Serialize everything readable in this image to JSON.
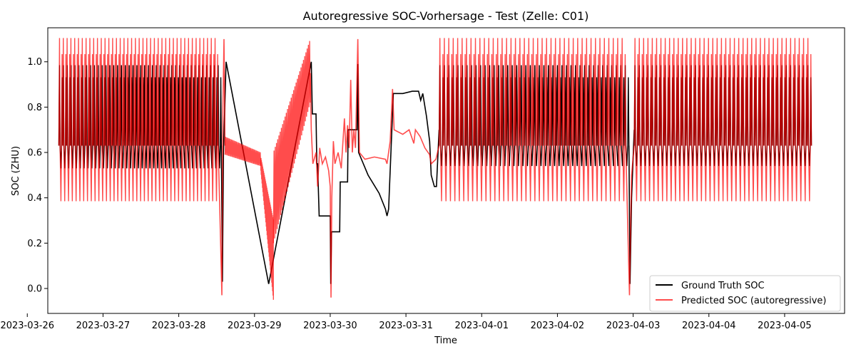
{
  "chart_data": {
    "type": "line",
    "title": "Autoregressive SOC-Vorhersage - Test (Zelle: C01)",
    "xlabel": "Time",
    "ylabel": "SOC (ZHU)",
    "xlim": [
      "2023-03-26 06:30",
      "2023-04-05 19:00"
    ],
    "ylim": [
      -0.11,
      1.15
    ],
    "x_ticks": [
      "2023-03-26",
      "2023-03-27",
      "2023-03-28",
      "2023-03-29",
      "2023-03-30",
      "2023-03-31",
      "2023-04-01",
      "2023-04-02",
      "2023-04-03",
      "2023-04-04",
      "2023-04-05"
    ],
    "y_ticks": [
      0.0,
      0.2,
      0.4,
      0.6,
      0.8,
      1.0
    ],
    "grid": false,
    "legend_position": "lower-right",
    "series": [
      {
        "name": "Ground Truth SOC",
        "color": "#000000",
        "segments": [
          {
            "kind": "cycling",
            "start": "2023-03-26 10:00",
            "end": "2023-03-28 13:30",
            "cycles": 42,
            "min": 0.53,
            "max": 0.985,
            "mid": 0.63
          },
          {
            "kind": "path",
            "points": [
              [
                "2023-03-28 13:30",
                0.63
              ],
              [
                "2023-03-28 13:50",
                0.03
              ],
              [
                "2023-03-28 14:10",
                0.6
              ],
              [
                "2023-03-28 15:00",
                1.0
              ],
              [
                "2023-03-29 04:30",
                0.02
              ],
              [
                "2023-03-29 18:00",
                1.0
              ],
              [
                "2023-03-29 18:20",
                0.77
              ],
              [
                "2023-03-29 19:30",
                0.77
              ],
              [
                "2023-03-29 19:45",
                0.55
              ],
              [
                "2023-03-29 20:00",
                0.55
              ],
              [
                "2023-03-29 20:30",
                0.32
              ],
              [
                "2023-03-30 00:00",
                0.32
              ],
              [
                "2023-03-30 00:10",
                0.02
              ],
              [
                "2023-03-30 00:25",
                0.25
              ],
              [
                "2023-03-30 03:00",
                0.25
              ],
              [
                "2023-03-30 03:10",
                0.47
              ],
              [
                "2023-03-30 05:30",
                0.47
              ],
              [
                "2023-03-30 05:40",
                0.7
              ],
              [
                "2023-03-30 08:30",
                0.7
              ],
              [
                "2023-03-30 08:45",
                0.99
              ],
              [
                "2023-03-30 09:00",
                0.6
              ],
              [
                "2023-03-30 12:00",
                0.5
              ],
              [
                "2023-03-30 15:30",
                0.42
              ],
              [
                "2023-03-30 17:30",
                0.35
              ],
              [
                "2023-03-30 18:00",
                0.32
              ],
              [
                "2023-03-30 18:30",
                0.35
              ],
              [
                "2023-03-30 20:00",
                0.86
              ],
              [
                "2023-03-30 23:00",
                0.86
              ],
              [
                "2023-03-31 02:00",
                0.87
              ],
              [
                "2023-03-31 04:00",
                0.87
              ],
              [
                "2023-03-31 04:40",
                0.83
              ],
              [
                "2023-03-31 05:20",
                0.86
              ],
              [
                "2023-03-31 06:30",
                0.76
              ],
              [
                "2023-03-31 07:30",
                0.65
              ],
              [
                "2023-03-31 08:00",
                0.5
              ],
              [
                "2023-03-31 09:00",
                0.45
              ],
              [
                "2023-03-31 09:40",
                0.45
              ],
              [
                "2023-03-31 10:30",
                0.7
              ]
            ]
          },
          {
            "kind": "cycling",
            "start": "2023-03-31 10:30",
            "end": "2023-04-02 22:40",
            "cycles": 42,
            "min": 0.54,
            "max": 0.985,
            "mid": 0.63
          },
          {
            "kind": "path",
            "points": [
              [
                "2023-04-02 22:40",
                0.63
              ],
              [
                "2023-04-02 23:00",
                0.02
              ],
              [
                "2023-04-02 23:30",
                0.4
              ],
              [
                "2023-04-03 00:20",
                0.7
              ]
            ]
          },
          {
            "kind": "cycling",
            "start": "2023-04-03 00:20",
            "end": "2023-04-05 08:30",
            "cycles": 41,
            "min": 0.54,
            "max": 0.985,
            "mid": 0.63
          }
        ]
      },
      {
        "name": "Predicted SOC (autoregressive)",
        "color": "#ff0000",
        "opacity": 0.7,
        "segments": [
          {
            "kind": "cycling",
            "start": "2023-03-26 10:00",
            "end": "2023-03-28 12:30",
            "cycles": 42,
            "min": 0.385,
            "max": 1.105,
            "mid": 0.63
          },
          {
            "kind": "path",
            "points": [
              [
                "2023-03-28 12:30",
                0.63
              ],
              [
                "2023-03-28 13:00",
                0.35
              ],
              [
                "2023-03-28 13:40",
                -0.03
              ],
              [
                "2023-03-28 14:00",
                0.8
              ],
              [
                "2023-03-28 14:20",
                1.1
              ],
              [
                "2023-03-28 14:40",
                0.63
              ]
            ]
          },
          {
            "kind": "band",
            "start": "2023-03-28 14:40",
            "end": "2023-03-29 02:00",
            "lower_start": 0.59,
            "lower_end": 0.54,
            "upper_start": 0.67,
            "upper_end": 0.6
          },
          {
            "kind": "band",
            "start": "2023-03-29 02:00",
            "end": "2023-03-29 06:00",
            "lower_start": 0.52,
            "lower_end": -0.05,
            "upper_start": 0.58,
            "upper_end": 0.3
          },
          {
            "kind": "band",
            "start": "2023-03-29 06:00",
            "end": "2023-03-29 17:40",
            "lower_start": 0.2,
            "lower_end": 0.82,
            "upper_start": 0.6,
            "upper_end": 1.1
          },
          {
            "kind": "path",
            "points": [
              [
                "2023-03-29 17:40",
                0.95
              ],
              [
                "2023-03-29 18:00",
                0.7
              ],
              [
                "2023-03-29 18:30",
                0.55
              ],
              [
                "2023-03-29 19:30",
                0.6
              ],
              [
                "2023-03-29 20:00",
                0.45
              ],
              [
                "2023-03-29 20:40",
                0.62
              ],
              [
                "2023-03-29 21:30",
                0.55
              ],
              [
                "2023-03-29 22:30",
                0.58
              ],
              [
                "2023-03-29 23:30",
                0.52
              ],
              [
                "2023-03-30 00:00",
                0.45
              ],
              [
                "2023-03-30 00:15",
                -0.04
              ],
              [
                "2023-03-30 00:30",
                0.4
              ],
              [
                "2023-03-30 01:00",
                0.65
              ],
              [
                "2023-03-30 01:30",
                0.55
              ],
              [
                "2023-03-30 02:30",
                0.6
              ],
              [
                "2023-03-30 03:30",
                0.53
              ],
              [
                "2023-03-30 04:30",
                0.75
              ],
              [
                "2023-03-30 05:00",
                0.6
              ],
              [
                "2023-03-30 05:30",
                0.72
              ],
              [
                "2023-03-30 06:00",
                0.62
              ],
              [
                "2023-03-30 06:30",
                0.92
              ],
              [
                "2023-03-30 07:00",
                0.6
              ],
              [
                "2023-03-30 07:30",
                0.7
              ],
              [
                "2023-03-30 08:00",
                0.62
              ],
              [
                "2023-03-30 08:45",
                1.1
              ],
              [
                "2023-03-30 09:15",
                0.6
              ],
              [
                "2023-03-30 11:00",
                0.57
              ],
              [
                "2023-03-30 14:00",
                0.58
              ],
              [
                "2023-03-30 17:30",
                0.57
              ],
              [
                "2023-03-30 18:00",
                0.55
              ],
              [
                "2023-03-30 19:00",
                0.65
              ],
              [
                "2023-03-30 19:45",
                0.88
              ],
              [
                "2023-03-30 20:15",
                0.7
              ],
              [
                "2023-03-30 23:00",
                0.68
              ],
              [
                "2023-03-31 01:00",
                0.7
              ],
              [
                "2023-03-31 02:30",
                0.64
              ],
              [
                "2023-03-31 03:00",
                0.7
              ],
              [
                "2023-03-31 04:30",
                0.67
              ],
              [
                "2023-03-31 06:00",
                0.62
              ],
              [
                "2023-03-31 07:30",
                0.59
              ],
              [
                "2023-03-31 08:00",
                0.55
              ],
              [
                "2023-03-31 09:30",
                0.57
              ],
              [
                "2023-03-31 10:30",
                0.63
              ]
            ]
          },
          {
            "kind": "cycling",
            "start": "2023-03-31 10:30",
            "end": "2023-04-02 21:40",
            "cycles": 42,
            "min": 0.385,
            "max": 1.105,
            "mid": 0.63
          },
          {
            "kind": "path",
            "points": [
              [
                "2023-04-02 21:40",
                0.63
              ],
              [
                "2023-04-02 22:10",
                0.34
              ],
              [
                "2023-04-02 22:50",
                -0.03
              ],
              [
                "2023-04-02 23:30",
                0.5
              ],
              [
                "2023-04-03 00:20",
                0.63
              ]
            ]
          },
          {
            "kind": "cycling",
            "start": "2023-04-03 00:20",
            "end": "2023-04-05 08:30",
            "cycles": 41,
            "min": 0.385,
            "max": 1.105,
            "mid": 0.63
          }
        ]
      }
    ]
  }
}
